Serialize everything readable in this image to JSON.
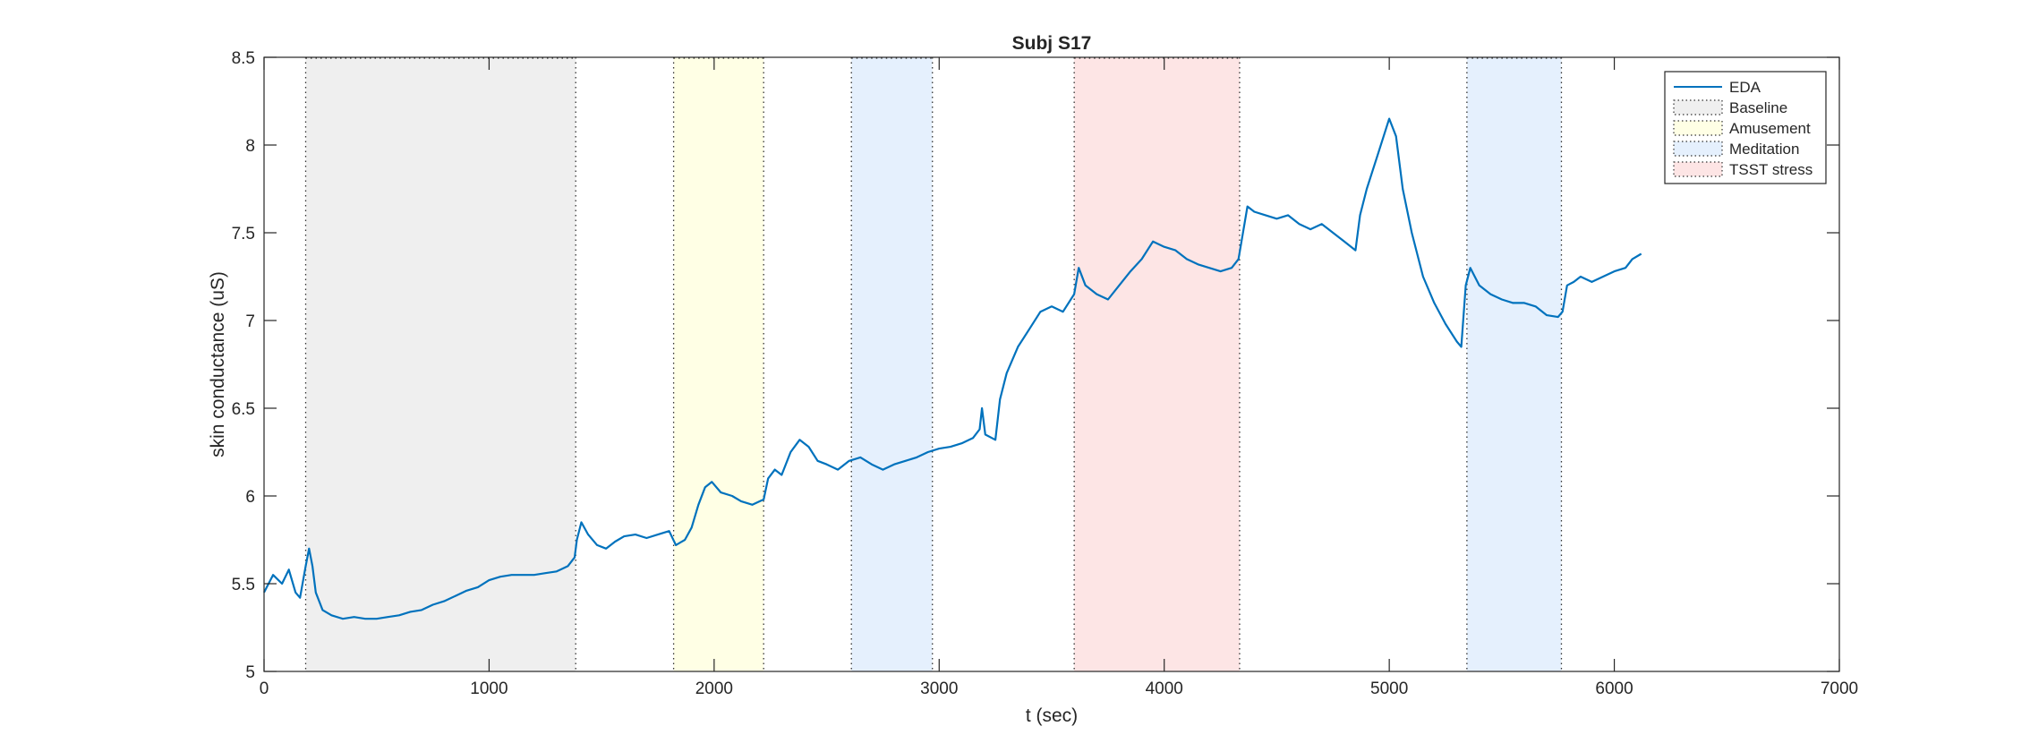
{
  "chart_data": {
    "type": "line",
    "title": "Subj S17",
    "xlabel": "t (sec)",
    "ylabel": "skin conductance (uS)",
    "xlim": [
      0,
      7000
    ],
    "ylim": [
      5,
      8.5
    ],
    "x_ticks": [
      0,
      1000,
      2000,
      3000,
      4000,
      5000,
      6000,
      7000
    ],
    "y_ticks": [
      5,
      5.5,
      6,
      6.5,
      7,
      7.5,
      8,
      8.5
    ],
    "x_tick_labels": [
      "0",
      "1000",
      "2000",
      "3000",
      "4000",
      "5000",
      "6000",
      "7000"
    ],
    "y_tick_labels": [
      "5",
      "5.5",
      "6",
      "6.5",
      "7",
      "7.5",
      "8",
      "8.5"
    ],
    "grid": false,
    "legend_position": "top-right",
    "series": [
      {
        "name": "EDA",
        "color": "#0072BD",
        "points": [
          [
            0,
            5.45
          ],
          [
            40,
            5.55
          ],
          [
            80,
            5.5
          ],
          [
            110,
            5.58
          ],
          [
            140,
            5.45
          ],
          [
            160,
            5.42
          ],
          [
            185,
            5.6
          ],
          [
            200,
            5.7
          ],
          [
            215,
            5.6
          ],
          [
            230,
            5.45
          ],
          [
            260,
            5.35
          ],
          [
            300,
            5.32
          ],
          [
            350,
            5.3
          ],
          [
            400,
            5.31
          ],
          [
            450,
            5.3
          ],
          [
            500,
            5.3
          ],
          [
            550,
            5.31
          ],
          [
            600,
            5.32
          ],
          [
            650,
            5.34
          ],
          [
            700,
            5.35
          ],
          [
            750,
            5.38
          ],
          [
            800,
            5.4
          ],
          [
            850,
            5.43
          ],
          [
            900,
            5.46
          ],
          [
            950,
            5.48
          ],
          [
            1000,
            5.52
          ],
          [
            1050,
            5.54
          ],
          [
            1100,
            5.55
          ],
          [
            1150,
            5.55
          ],
          [
            1200,
            5.55
          ],
          [
            1250,
            5.56
          ],
          [
            1300,
            5.57
          ],
          [
            1350,
            5.6
          ],
          [
            1380,
            5.65
          ],
          [
            1390,
            5.75
          ],
          [
            1410,
            5.85
          ],
          [
            1440,
            5.78
          ],
          [
            1480,
            5.72
          ],
          [
            1520,
            5.7
          ],
          [
            1560,
            5.74
          ],
          [
            1600,
            5.77
          ],
          [
            1650,
            5.78
          ],
          [
            1700,
            5.76
          ],
          [
            1750,
            5.78
          ],
          [
            1800,
            5.8
          ],
          [
            1830,
            5.72
          ],
          [
            1870,
            5.75
          ],
          [
            1900,
            5.82
          ],
          [
            1930,
            5.95
          ],
          [
            1960,
            6.05
          ],
          [
            1990,
            6.08
          ],
          [
            2030,
            6.02
          ],
          [
            2080,
            6.0
          ],
          [
            2120,
            5.97
          ],
          [
            2170,
            5.95
          ],
          [
            2220,
            5.98
          ],
          [
            2240,
            6.1
          ],
          [
            2270,
            6.15
          ],
          [
            2300,
            6.12
          ],
          [
            2340,
            6.25
          ],
          [
            2380,
            6.32
          ],
          [
            2420,
            6.28
          ],
          [
            2460,
            6.2
          ],
          [
            2500,
            6.18
          ],
          [
            2550,
            6.15
          ],
          [
            2600,
            6.2
          ],
          [
            2650,
            6.22
          ],
          [
            2700,
            6.18
          ],
          [
            2750,
            6.15
          ],
          [
            2800,
            6.18
          ],
          [
            2850,
            6.2
          ],
          [
            2900,
            6.22
          ],
          [
            2950,
            6.25
          ],
          [
            3000,
            6.27
          ],
          [
            3050,
            6.28
          ],
          [
            3100,
            6.3
          ],
          [
            3150,
            6.33
          ],
          [
            3180,
            6.38
          ],
          [
            3190,
            6.5
          ],
          [
            3205,
            6.35
          ],
          [
            3250,
            6.32
          ],
          [
            3270,
            6.55
          ],
          [
            3300,
            6.7
          ],
          [
            3350,
            6.85
          ],
          [
            3400,
            6.95
          ],
          [
            3450,
            7.05
          ],
          [
            3500,
            7.08
          ],
          [
            3550,
            7.05
          ],
          [
            3600,
            7.15
          ],
          [
            3620,
            7.3
          ],
          [
            3650,
            7.2
          ],
          [
            3700,
            7.15
          ],
          [
            3750,
            7.12
          ],
          [
            3800,
            7.2
          ],
          [
            3850,
            7.28
          ],
          [
            3900,
            7.35
          ],
          [
            3950,
            7.45
          ],
          [
            4000,
            7.42
          ],
          [
            4050,
            7.4
          ],
          [
            4100,
            7.35
          ],
          [
            4150,
            7.32
          ],
          [
            4200,
            7.3
          ],
          [
            4250,
            7.28
          ],
          [
            4300,
            7.3
          ],
          [
            4330,
            7.35
          ],
          [
            4350,
            7.5
          ],
          [
            4370,
            7.65
          ],
          [
            4400,
            7.62
          ],
          [
            4450,
            7.6
          ],
          [
            4500,
            7.58
          ],
          [
            4550,
            7.6
          ],
          [
            4600,
            7.55
          ],
          [
            4650,
            7.52
          ],
          [
            4700,
            7.55
          ],
          [
            4750,
            7.5
          ],
          [
            4800,
            7.45
          ],
          [
            4850,
            7.4
          ],
          [
            4870,
            7.6
          ],
          [
            4900,
            7.75
          ],
          [
            4950,
            7.95
          ],
          [
            5000,
            8.15
          ],
          [
            5030,
            8.05
          ],
          [
            5060,
            7.75
          ],
          [
            5100,
            7.5
          ],
          [
            5150,
            7.25
          ],
          [
            5200,
            7.1
          ],
          [
            5250,
            6.98
          ],
          [
            5300,
            6.88
          ],
          [
            5320,
            6.85
          ],
          [
            5340,
            7.2
          ],
          [
            5360,
            7.3
          ],
          [
            5400,
            7.2
          ],
          [
            5450,
            7.15
          ],
          [
            5500,
            7.12
          ],
          [
            5550,
            7.1
          ],
          [
            5600,
            7.1
          ],
          [
            5650,
            7.08
          ],
          [
            5700,
            7.03
          ],
          [
            5750,
            7.02
          ],
          [
            5770,
            7.05
          ],
          [
            5790,
            7.2
          ],
          [
            5820,
            7.22
          ],
          [
            5850,
            7.25
          ],
          [
            5900,
            7.22
          ],
          [
            5950,
            7.25
          ],
          [
            6000,
            7.28
          ],
          [
            6050,
            7.3
          ],
          [
            6080,
            7.35
          ],
          [
            6120,
            7.38
          ]
        ]
      }
    ],
    "phases": [
      {
        "name": "Baseline",
        "start": 185,
        "end": 1385,
        "color": "#EFEFEF"
      },
      {
        "name": "Amusement",
        "start": 1820,
        "end": 2220,
        "color": "#FFFFE5"
      },
      {
        "name": "Meditation",
        "start": 2610,
        "end": 2970,
        "color": "#E5F0FD"
      },
      {
        "name": "TSST stress",
        "start": 3600,
        "end": 4335,
        "color": "#FDE5E5"
      },
      {
        "name": "Meditation",
        "start": 5345,
        "end": 5765,
        "color": "#E5F0FD"
      }
    ],
    "legend": [
      {
        "label": "EDA",
        "kind": "line",
        "color": "#0072BD"
      },
      {
        "label": "Baseline",
        "kind": "patch",
        "color": "#EFEFEF"
      },
      {
        "label": "Amusement",
        "kind": "patch",
        "color": "#FFFFE5"
      },
      {
        "label": "Meditation",
        "kind": "patch",
        "color": "#E5F0FD"
      },
      {
        "label": "TSST stress",
        "kind": "patch",
        "color": "#FDE5E5"
      }
    ]
  }
}
